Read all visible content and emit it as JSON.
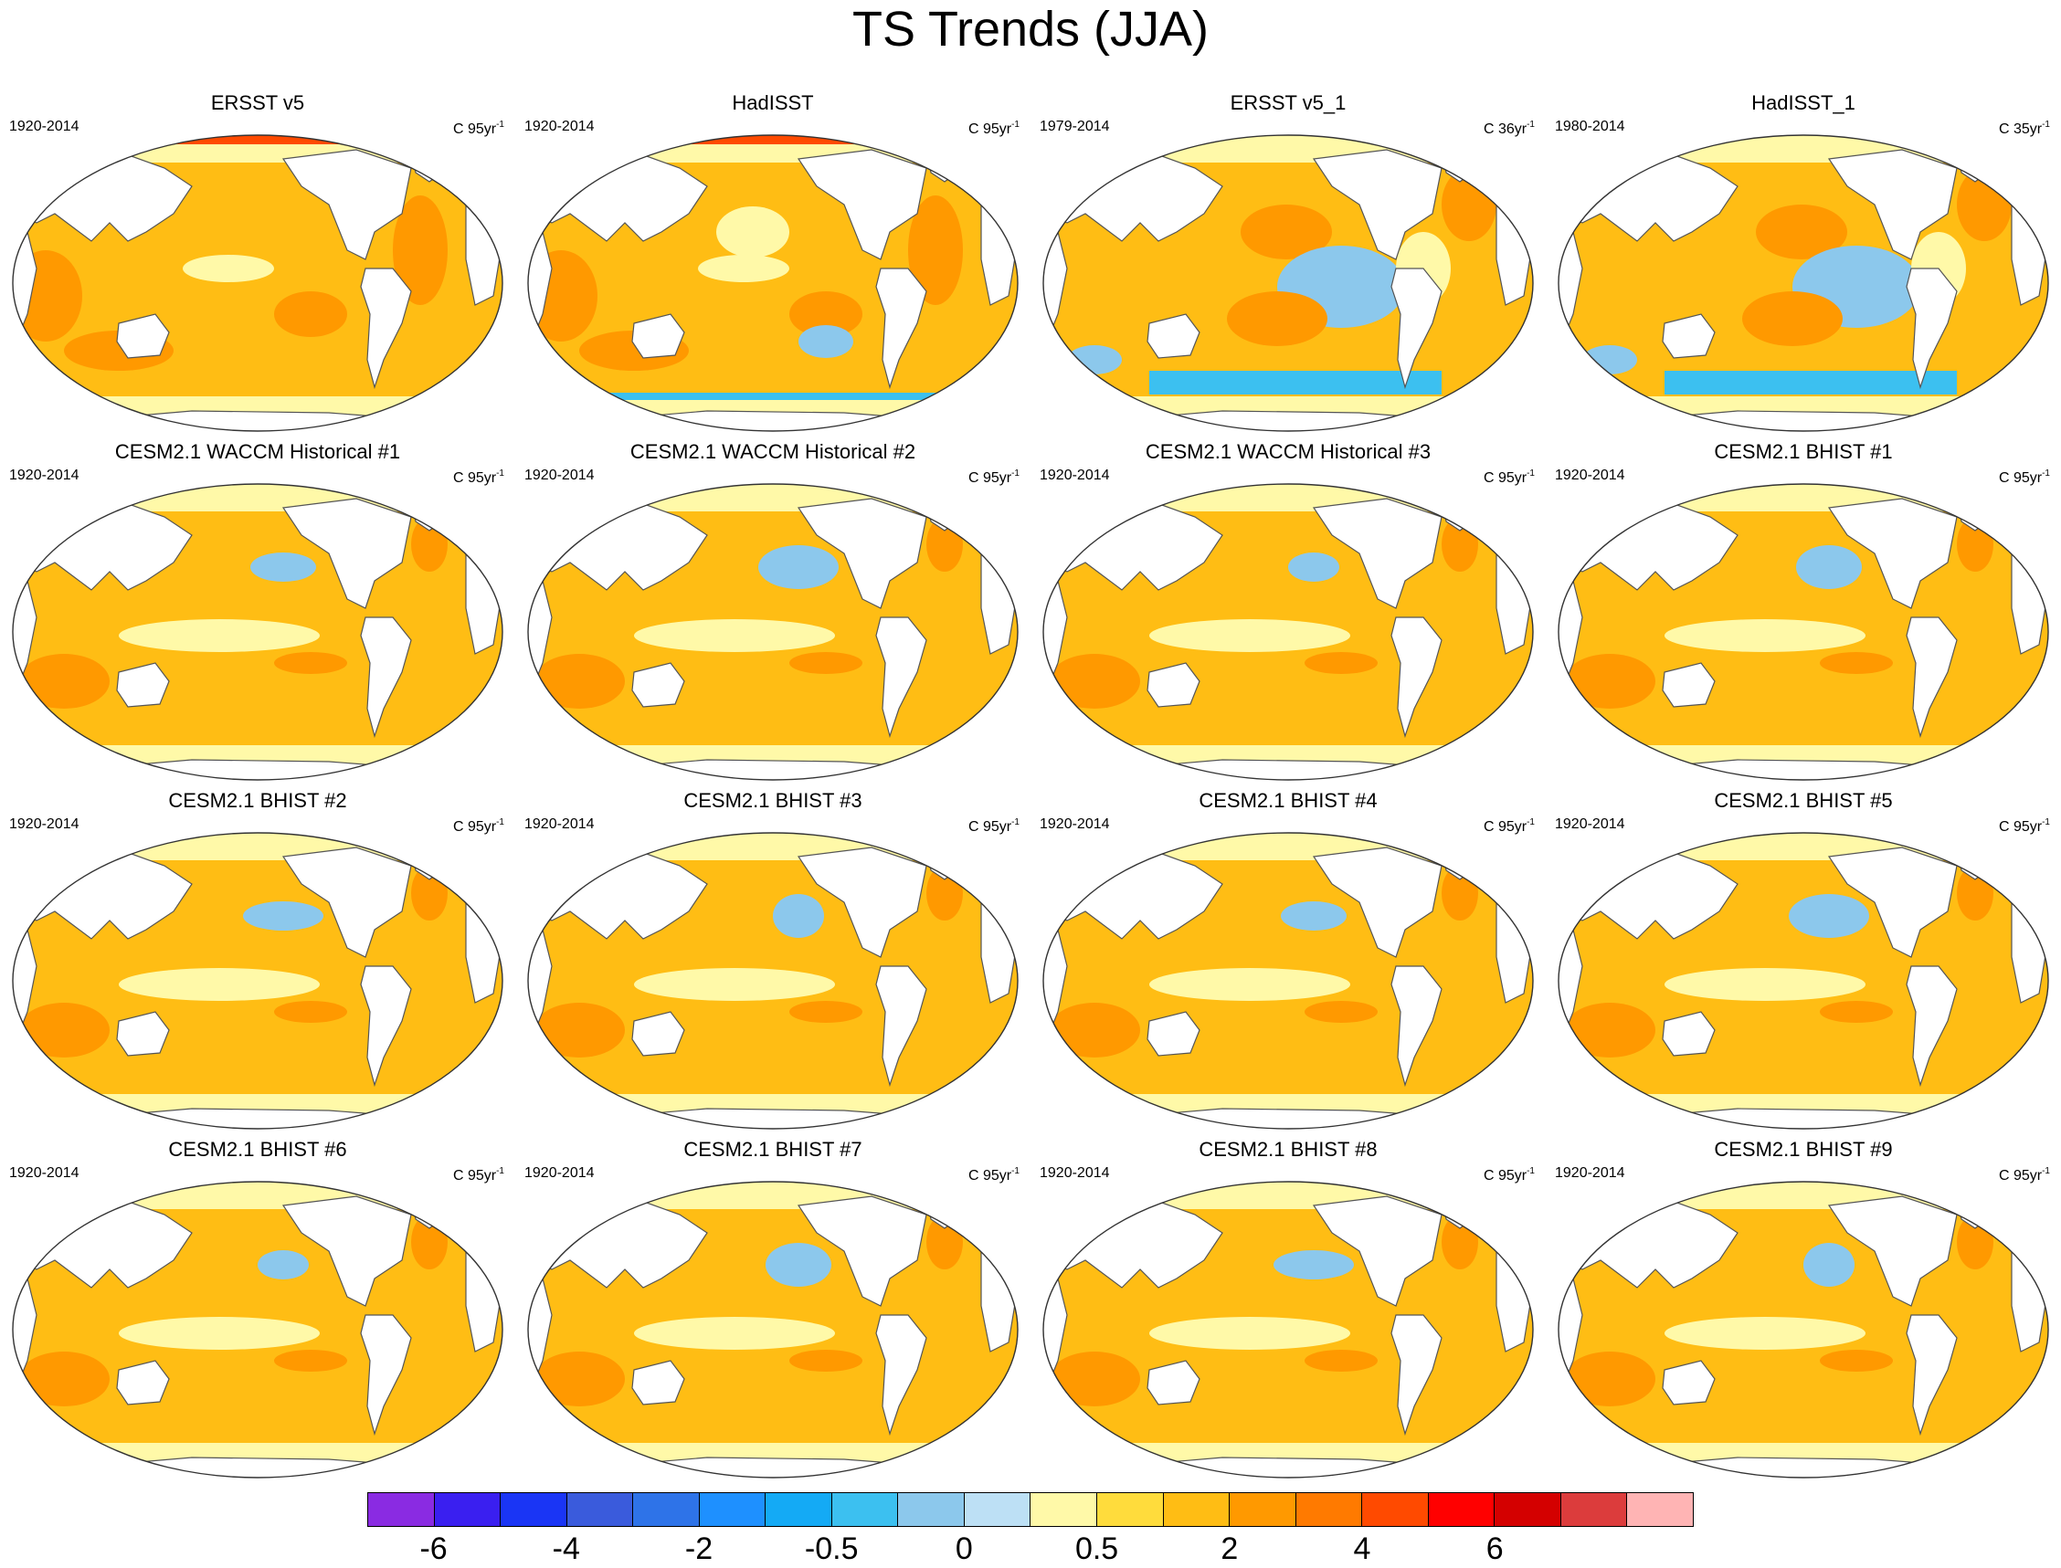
{
  "title": "TS Trends (JJA)",
  "panels": [
    {
      "title": "ERSST v5",
      "period": "1920-2014",
      "units_base": "C 95yr",
      "units_exp": "-1",
      "palette": "warm"
    },
    {
      "title": "HadISST",
      "period": "1920-2014",
      "units_base": "C 95yr",
      "units_exp": "-1",
      "palette": "warm-noisy"
    },
    {
      "title": "ERSST v5_1",
      "period": "1979-2014",
      "units_base": "C 36yr",
      "units_exp": "-1",
      "palette": "mixed-cool"
    },
    {
      "title": "HadISST_1",
      "period": "1980-2014",
      "units_base": "C 35yr",
      "units_exp": "-1",
      "palette": "mixed-cool"
    },
    {
      "title": "CESM2.1 WACCM Historical #1",
      "period": "1920-2014",
      "units_base": "C 95yr",
      "units_exp": "-1",
      "palette": "model"
    },
    {
      "title": "CESM2.1 WACCM Historical #2",
      "period": "1920-2014",
      "units_base": "C 95yr",
      "units_exp": "-1",
      "palette": "model"
    },
    {
      "title": "CESM2.1 WACCM Historical #3",
      "period": "1920-2014",
      "units_base": "C 95yr",
      "units_exp": "-1",
      "palette": "model"
    },
    {
      "title": "CESM2.1 BHIST #1",
      "period": "1920-2014",
      "units_base": "C 95yr",
      "units_exp": "-1",
      "palette": "model"
    },
    {
      "title": "CESM2.1 BHIST #2",
      "period": "1920-2014",
      "units_base": "C 95yr",
      "units_exp": "-1",
      "palette": "model"
    },
    {
      "title": "CESM2.1 BHIST #3",
      "period": "1920-2014",
      "units_base": "C 95yr",
      "units_exp": "-1",
      "palette": "model"
    },
    {
      "title": "CESM2.1 BHIST #4",
      "period": "1920-2014",
      "units_base": "C 95yr",
      "units_exp": "-1",
      "palette": "model"
    },
    {
      "title": "CESM2.1 BHIST #5",
      "period": "1920-2014",
      "units_base": "C 95yr",
      "units_exp": "-1",
      "palette": "model"
    },
    {
      "title": "CESM2.1 BHIST #6",
      "period": "1920-2014",
      "units_base": "C 95yr",
      "units_exp": "-1",
      "palette": "model"
    },
    {
      "title": "CESM2.1 BHIST #7",
      "period": "1920-2014",
      "units_base": "C 95yr",
      "units_exp": "-1",
      "palette": "model"
    },
    {
      "title": "CESM2.1 BHIST #8",
      "period": "1920-2014",
      "units_base": "C 95yr",
      "units_exp": "-1",
      "palette": "model"
    },
    {
      "title": "CESM2.1 BHIST #9",
      "period": "1920-2014",
      "units_base": "C 95yr",
      "units_exp": "-1",
      "palette": "model"
    }
  ],
  "colorbar": {
    "colors": [
      "#8a2be2",
      "#3a1ff0",
      "#1a35f5",
      "#3a5bdc",
      "#2e73e8",
      "#1e90ff",
      "#14aaf5",
      "#3cc0f0",
      "#8cc8ec",
      "#bde0f5",
      "#fff9a8",
      "#ffdc3c",
      "#ffbd14",
      "#ff9900",
      "#ff7a00",
      "#ff4a00",
      "#ff0000",
      "#d40000",
      "#dc3c3c",
      "#ffb4b4"
    ],
    "labels": [
      "-6",
      "-4",
      "-2",
      "-0.5",
      "0",
      "0.5",
      "2",
      "4",
      "6"
    ]
  },
  "legend_colors": {
    "land": "#ffffff",
    "coast": "#555555",
    "warm_base": "#ffbd14",
    "warm_strong": "#ff9900",
    "weak_warm": "#fff9a8",
    "cool": "#8cc8ec"
  }
}
